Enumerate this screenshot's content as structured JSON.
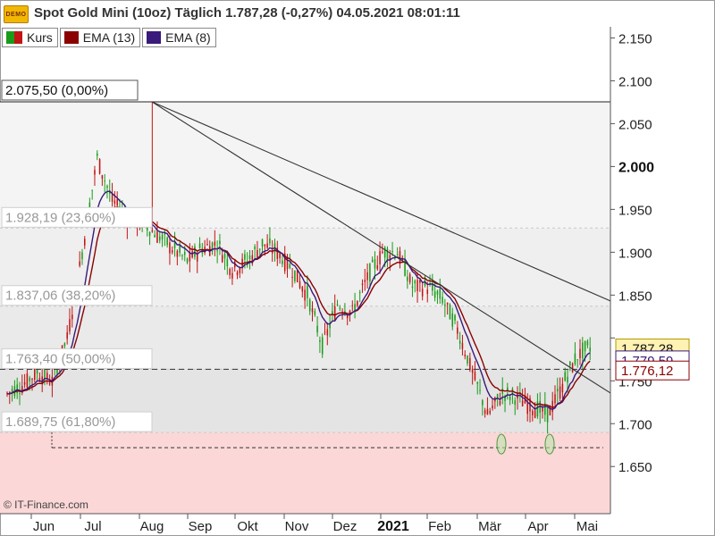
{
  "header": {
    "badge": "DEMO",
    "title": "Spot Gold Mini (10oz)  Täglich 1.787,28 (-0,27%) 04.05.2021 08:01:11"
  },
  "legend": [
    {
      "label": "Kurs",
      "icon": "candle-swatch",
      "colors": [
        "#1a9a1a",
        "#c21414"
      ]
    },
    {
      "label": "EMA (13)",
      "icon": "ema-swatch",
      "color": "#8b0000"
    },
    {
      "label": "EMA (8)",
      "icon": "ema-swatch",
      "color": "#3a1a7a"
    }
  ],
  "copyright": "© IT-Finance.com",
  "chart_data": {
    "type": "candlestick",
    "y_axis": {
      "ticks": [
        1650,
        1700,
        1750,
        1800,
        1850,
        1900,
        1950,
        2000,
        2050,
        2100,
        2150
      ],
      "tick_labels": [
        "1.650",
        "1.700",
        "1.750",
        "",
        "1.850",
        "1.900",
        "1.950",
        "2.000",
        "2.050",
        "2.100",
        "2.150"
      ],
      "bold_tick": "2.000",
      "range": [
        1595,
        2163
      ]
    },
    "x_axis": {
      "labels": [
        "Jun",
        "Jul",
        "Aug",
        "Sep",
        "Okt",
        "Nov",
        "Dez",
        "2021",
        "Feb",
        "Mär",
        "Apr",
        "Mai"
      ],
      "bold_label": "2021"
    },
    "fib_levels": [
      {
        "label": "2.075,50 (0,00%)",
        "value": 2075.5
      },
      {
        "label": "1.928,19 (23,60%)",
        "value": 1928.19
      },
      {
        "label": "1.837,06 (38,20%)",
        "value": 1837.06
      },
      {
        "label": "1.763,40 (50,00%)",
        "value": 1763.4
      },
      {
        "label": "1.689,75 (61,80%)",
        "value": 1689.75
      }
    ],
    "price_tags": [
      {
        "label": "1.787,28",
        "value": 1787.28,
        "series": "Kurs"
      },
      {
        "label": "1.779,59",
        "value": 1779.59,
        "series": "EMA (8)"
      },
      {
        "label": "1.776,12",
        "value": 1776.12,
        "series": "EMA (13)"
      }
    ],
    "colors": {
      "up": "#1a9a1a",
      "down": "#c21414",
      "ema13": "#8b0000",
      "ema8": "#3a1a7a",
      "support_zone": "#fbd7d7"
    },
    "close_path": [
      [
        1740,
        1735
      ],
      [
        1765,
        1745
      ],
      [
        1755,
        1760
      ],
      [
        1770,
        1750
      ],
      [
        1790,
        1800
      ],
      [
        1850,
        1900
      ],
      [
        1980,
        2010
      ],
      [
        2060,
        1960
      ],
      [
        1920,
        1940
      ],
      [
        1950,
        1935
      ],
      [
        1940,
        1920
      ],
      [
        1930,
        1905
      ],
      [
        1900,
        1890
      ],
      [
        1910,
        1905
      ],
      [
        1900,
        1910
      ],
      [
        1890,
        1880
      ],
      [
        1870,
        1890
      ],
      [
        1900,
        1910
      ],
      [
        1950,
        1900
      ],
      [
        1880,
        1880
      ],
      [
        1860,
        1850
      ],
      [
        1830,
        1790
      ],
      [
        1810,
        1840
      ],
      [
        1830,
        1830
      ],
      [
        1850,
        1870
      ],
      [
        1880,
        1900
      ],
      [
        1940,
        1900
      ],
      [
        1870,
        1860
      ],
      [
        1840,
        1860
      ],
      [
        1855,
        1845
      ],
      [
        1830,
        1810
      ],
      [
        1790,
        1760
      ],
      [
        1720,
        1710
      ],
      [
        1720,
        1735
      ],
      [
        1735,
        1730
      ],
      [
        1740,
        1720
      ],
      [
        1720,
        1710
      ],
      [
        1730,
        1745
      ],
      [
        1770,
        1780
      ],
      [
        1790,
        1790
      ]
    ],
    "trendlines": [
      {
        "from": [
          "Aug",
          2075.5
        ],
        "to": [
          "Mai",
          1753
        ]
      },
      {
        "from": [
          "Aug",
          2075.5
        ],
        "to": [
          "Mai",
          1855
        ]
      }
    ],
    "support_lines": [
      1763.4,
      1672
    ],
    "double_bottom_markers": [
      {
        "month": "Mär",
        "value": 1672
      },
      {
        "month": "Apr",
        "value": 1672
      }
    ]
  }
}
